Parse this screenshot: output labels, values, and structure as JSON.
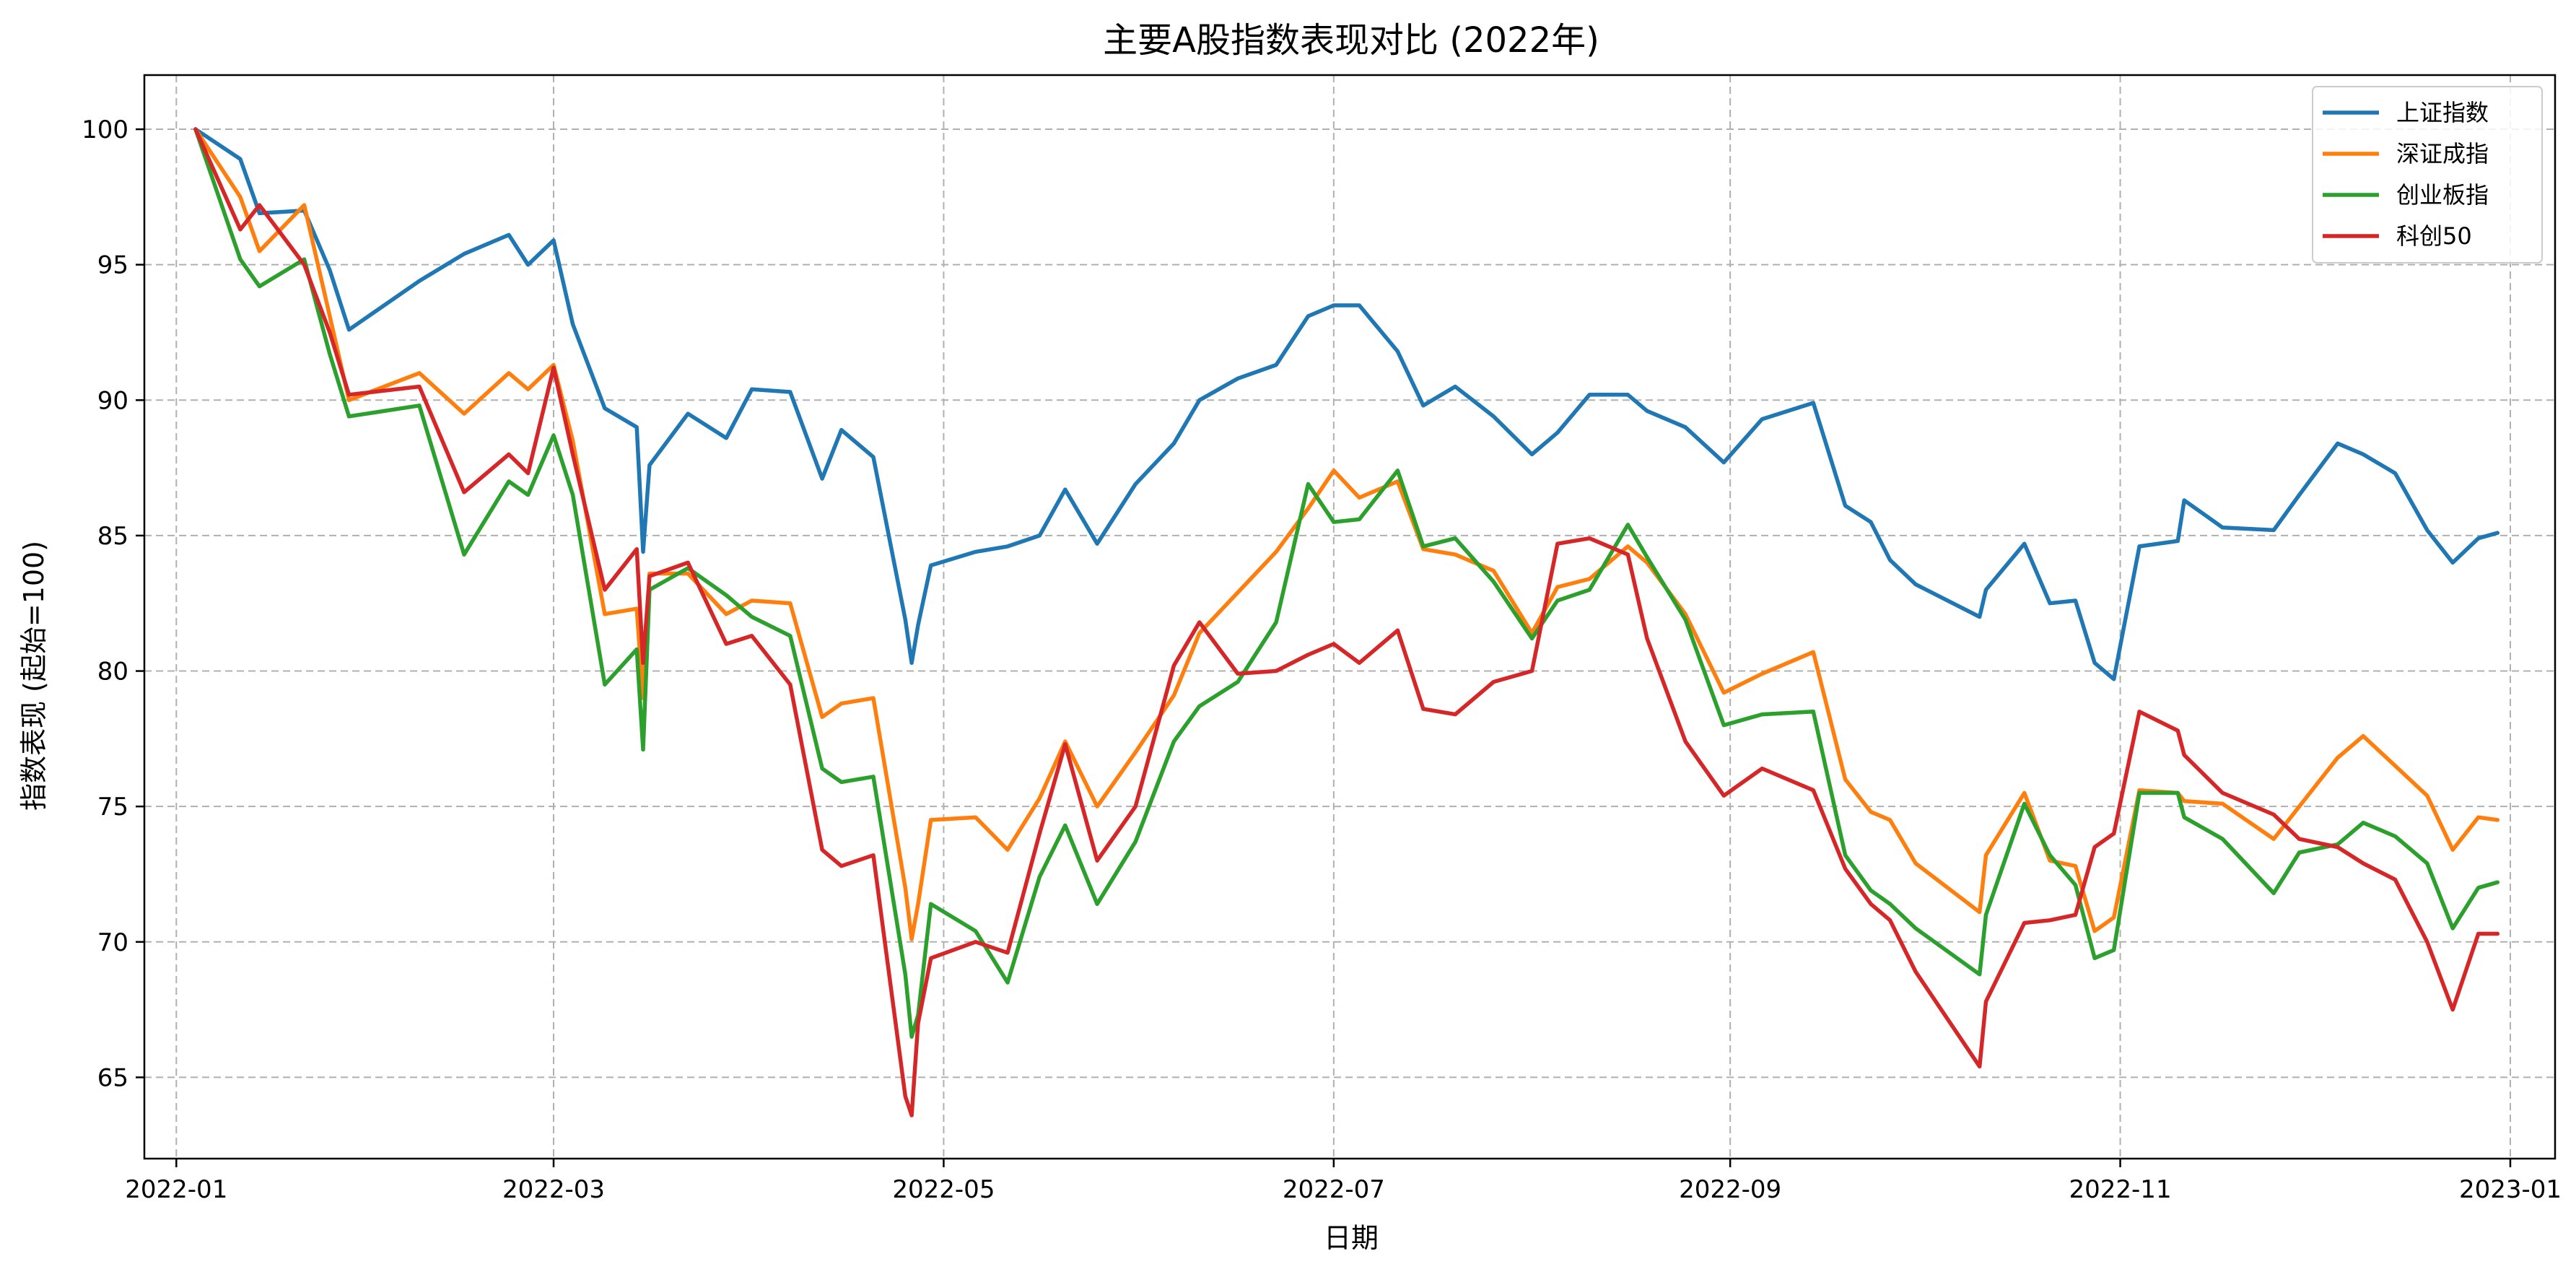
{
  "chart_data": {
    "type": "line",
    "title": "主要A股指数表现对比 (2022年)",
    "xlabel": "日期",
    "ylabel": "指数表现 (起始=100)",
    "xlim": [
      "2021-12-27",
      "2023-01-08"
    ],
    "ylim": [
      62,
      102
    ],
    "x_ticks": [
      "2022-01-01",
      "2022-03-01",
      "2022-05-01",
      "2022-07-01",
      "2022-09-01",
      "2022-11-01",
      "2023-01-01"
    ],
    "x_tick_labels": [
      "2022-01",
      "2022-03",
      "2022-05",
      "2022-07",
      "2022-09",
      "2022-11",
      "2023-01"
    ],
    "y_ticks": [
      65,
      70,
      75,
      80,
      85,
      90,
      95,
      100
    ],
    "y_tick_labels": [
      "65",
      "70",
      "75",
      "80",
      "85",
      "90",
      "95",
      "100"
    ],
    "grid": true,
    "legend_position": "top-right",
    "x": [
      "2022-01-04",
      "2022-01-11",
      "2022-01-14",
      "2022-01-21",
      "2022-01-25",
      "2022-01-28",
      "2022-02-08",
      "2022-02-15",
      "2022-02-22",
      "2022-02-25",
      "2022-03-01",
      "2022-03-04",
      "2022-03-09",
      "2022-03-14",
      "2022-03-15",
      "2022-03-16",
      "2022-03-22",
      "2022-03-28",
      "2022-04-01",
      "2022-04-07",
      "2022-04-12",
      "2022-04-15",
      "2022-04-20",
      "2022-04-25",
      "2022-04-26",
      "2022-04-27",
      "2022-04-29",
      "2022-05-06",
      "2022-05-11",
      "2022-05-16",
      "2022-05-20",
      "2022-05-25",
      "2022-05-31",
      "2022-06-06",
      "2022-06-10",
      "2022-06-16",
      "2022-06-22",
      "2022-06-27",
      "2022-07-01",
      "2022-07-05",
      "2022-07-11",
      "2022-07-15",
      "2022-07-20",
      "2022-07-26",
      "2022-08-01",
      "2022-08-05",
      "2022-08-10",
      "2022-08-16",
      "2022-08-19",
      "2022-08-25",
      "2022-08-31",
      "2022-09-06",
      "2022-09-14",
      "2022-09-19",
      "2022-09-23",
      "2022-09-26",
      "2022-09-30",
      "2022-10-10",
      "2022-10-11",
      "2022-10-17",
      "2022-10-21",
      "2022-10-25",
      "2022-10-28",
      "2022-10-31",
      "2022-11-04",
      "2022-11-10",
      "2022-11-11",
      "2022-11-17",
      "2022-11-25",
      "2022-11-29",
      "2022-12-05",
      "2022-12-09",
      "2022-12-14",
      "2022-12-19",
      "2022-12-23",
      "2022-12-27",
      "2022-12-30"
    ],
    "series": [
      {
        "name": "上证指数",
        "color": "#1f77b4",
        "values": [
          100.0,
          98.9,
          96.9,
          97.0,
          94.8,
          92.6,
          94.4,
          95.4,
          96.1,
          95.0,
          95.9,
          92.8,
          89.7,
          89.0,
          84.4,
          87.6,
          89.5,
          88.6,
          90.4,
          90.3,
          87.1,
          88.9,
          87.9,
          81.9,
          80.3,
          81.7,
          83.9,
          84.4,
          84.6,
          85.0,
          86.7,
          84.7,
          86.9,
          88.4,
          90.0,
          90.8,
          91.3,
          93.1,
          93.5,
          93.5,
          91.8,
          89.8,
          90.5,
          89.4,
          88.0,
          88.8,
          90.2,
          90.2,
          89.6,
          89.0,
          87.7,
          89.3,
          89.9,
          86.1,
          85.5,
          84.1,
          83.2,
          82.0,
          83.0,
          84.7,
          82.5,
          82.6,
          80.3,
          79.7,
          84.6,
          84.8,
          86.3,
          85.3,
          85.2,
          86.5,
          88.4,
          88.0,
          87.3,
          85.2,
          84.0,
          84.9,
          85.1
        ]
      },
      {
        "name": "深证成指",
        "color": "#ff7f0e",
        "values": [
          100.0,
          97.5,
          95.5,
          97.2,
          93.1,
          90.0,
          91.0,
          89.5,
          91.0,
          90.4,
          91.3,
          88.5,
          82.1,
          82.3,
          79.0,
          83.6,
          83.6,
          82.1,
          82.6,
          82.5,
          78.3,
          78.8,
          79.0,
          72.0,
          70.1,
          71.4,
          74.5,
          74.6,
          73.4,
          75.3,
          77.4,
          75.0,
          77.0,
          79.1,
          81.4,
          82.9,
          84.4,
          86.0,
          87.4,
          86.4,
          87.0,
          84.5,
          84.3,
          83.7,
          81.4,
          83.1,
          83.4,
          84.6,
          84.0,
          82.1,
          79.2,
          79.9,
          80.7,
          76.0,
          74.8,
          74.5,
          72.9,
          71.1,
          73.2,
          75.5,
          73.0,
          72.8,
          70.4,
          70.9,
          75.6,
          75.5,
          75.2,
          75.1,
          73.8,
          75.0,
          76.8,
          77.6,
          76.5,
          75.4,
          73.4,
          74.6,
          74.5
        ]
      },
      {
        "name": "创业板指",
        "color": "#2ca02c",
        "values": [
          100.0,
          95.2,
          94.2,
          95.2,
          91.7,
          89.4,
          89.8,
          84.3,
          87.0,
          86.5,
          88.7,
          86.5,
          79.5,
          80.8,
          77.1,
          83.0,
          83.8,
          82.8,
          82.0,
          81.3,
          76.4,
          75.9,
          76.1,
          68.8,
          66.5,
          67.3,
          71.4,
          70.4,
          68.5,
          72.4,
          74.3,
          71.4,
          73.7,
          77.4,
          78.7,
          79.6,
          81.8,
          86.9,
          85.5,
          85.6,
          87.4,
          84.6,
          84.9,
          83.3,
          81.2,
          82.6,
          83.0,
          85.4,
          84.2,
          81.9,
          78.0,
          78.4,
          78.5,
          73.2,
          71.9,
          71.4,
          70.5,
          68.8,
          71.0,
          75.1,
          73.2,
          72.1,
          69.4,
          69.7,
          75.5,
          75.5,
          74.6,
          73.8,
          71.8,
          73.3,
          73.6,
          74.4,
          73.9,
          72.9,
          70.5,
          72.0,
          72.2
        ]
      },
      {
        "name": "科创50",
        "color": "#d62728",
        "values": [
          100.0,
          96.3,
          97.2,
          95.0,
          92.5,
          90.2,
          90.5,
          86.6,
          88.0,
          87.3,
          91.2,
          88.0,
          83.0,
          84.5,
          80.3,
          83.5,
          84.0,
          81.0,
          81.3,
          79.5,
          73.4,
          72.8,
          73.2,
          64.3,
          63.6,
          67.0,
          69.4,
          70.0,
          69.6,
          74.0,
          77.3,
          73.0,
          75.0,
          80.2,
          81.8,
          79.9,
          80.0,
          80.6,
          81.0,
          80.3,
          81.5,
          78.6,
          78.4,
          79.6,
          80.0,
          84.7,
          84.9,
          84.3,
          81.2,
          77.4,
          75.4,
          76.4,
          75.6,
          72.7,
          71.4,
          70.8,
          68.9,
          65.4,
          67.8,
          70.7,
          70.8,
          71.0,
          73.5,
          74.0,
          78.5,
          77.8,
          76.9,
          75.5,
          74.7,
          73.8,
          73.5,
          72.9,
          72.3,
          70.0,
          67.5,
          70.3,
          70.3
        ]
      }
    ]
  }
}
